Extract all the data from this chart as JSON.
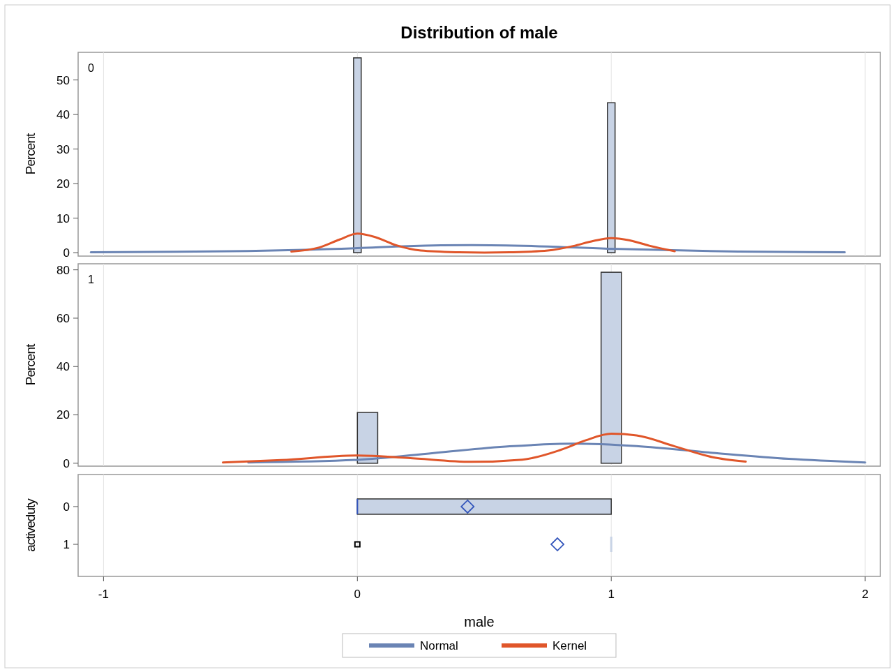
{
  "chart_data": [
    {
      "type": "histogram",
      "title": "Distribution of male",
      "ylabel": "Percent",
      "annotations": [
        "0"
      ],
      "color": "#c8d3e5",
      "bins": [
        -0.015,
        0.015,
        0.045,
        0.076,
        0.106,
        0.136,
        0.167,
        0.197,
        0.227,
        0.258,
        0.288,
        0.318,
        0.348,
        0.379,
        0.409,
        0.439,
        0.47,
        0.5,
        0.53,
        0.561,
        0.591,
        0.621,
        0.652,
        0.682,
        0.712,
        0.742,
        0.773,
        0.803,
        0.833,
        0.864,
        0.894,
        0.924,
        0.955,
        0.985,
        1.015
      ],
      "values": [
        56.4,
        0,
        0,
        0,
        0,
        0,
        0,
        0,
        0,
        0,
        0,
        0,
        0,
        0,
        0,
        0,
        0,
        0,
        0,
        0,
        0,
        0,
        0,
        0,
        0,
        0,
        0,
        0,
        0,
        0,
        0,
        0,
        0,
        43.4
      ],
      "series": [
        {
          "name": "Normal",
          "type": "line",
          "color": "#6a84b4",
          "x": [
            -1.05,
            -0.5,
            0,
            0.2,
            0.45,
            0.7,
            1.0,
            1.5,
            1.92
          ],
          "values": [
            0.1,
            0.4,
            1.3,
            1.9,
            2.2,
            1.9,
            1.1,
            0.3,
            0.1
          ]
        },
        {
          "name": "Kernel",
          "type": "line",
          "color": "#e0562a",
          "x": [
            -0.26,
            -0.15,
            -0.07,
            0,
            0.07,
            0.15,
            0.25,
            0.4,
            0.5,
            0.6,
            0.75,
            0.85,
            0.93,
            1.0,
            1.07,
            1.15,
            1.25
          ],
          "values": [
            0.3,
            1.5,
            3.8,
            5.5,
            4.5,
            2.2,
            0.6,
            0.1,
            0,
            0.1,
            0.6,
            1.9,
            3.4,
            4.2,
            3.6,
            2.0,
            0.4
          ]
        }
      ],
      "xlim": [
        -1.1,
        2.06
      ],
      "xticks": [
        -1,
        0,
        1,
        2
      ],
      "ylim": [
        -1,
        58
      ],
      "yticks": [
        0,
        10,
        20,
        30,
        40,
        50
      ],
      "grid": "x",
      "tick_labels": "y",
      "legend": "bottom"
    },
    {
      "type": "histogram",
      "ylabel": "Percent",
      "annotations": [
        "1"
      ],
      "color": "#c8d3e5",
      "bins": [
        0,
        0.08,
        0.16,
        0.24,
        0.32,
        0.4,
        0.48,
        0.56,
        0.64,
        0.72,
        0.8,
        0.88,
        0.96,
        1.04
      ],
      "values": [
        21,
        0,
        0,
        0,
        0,
        0,
        0,
        0,
        0,
        0,
        0,
        0,
        79
      ],
      "series": [
        {
          "type": "line",
          "color": "#6a84b4",
          "x": [
            -0.43,
            0,
            0.3,
            0.6,
            0.85,
            1.1,
            1.4,
            1.7,
            2.0
          ],
          "values": [
            0.3,
            1.4,
            4.2,
            7.0,
            8.1,
            7.1,
            4.3,
            1.8,
            0.3
          ]
        },
        {
          "type": "line",
          "color": "#e0562a",
          "x": [
            -0.53,
            -0.3,
            0,
            0.2,
            0.45,
            0.65,
            0.8,
            0.9,
            1.0,
            1.1,
            1.25,
            1.4,
            1.53
          ],
          "values": [
            0.3,
            1.3,
            3.2,
            2.2,
            0.6,
            1.5,
            5.5,
            9.5,
            12.2,
            11.5,
            7.0,
            2.5,
            0.7
          ]
        }
      ],
      "xlim": [
        -1.1,
        2.06
      ],
      "xticks": [
        -1,
        0,
        1,
        2
      ],
      "ylim": [
        -1.2,
        82.5
      ],
      "yticks": [
        0,
        20,
        40,
        60,
        80
      ],
      "grid": "x",
      "tick_labels": "y"
    },
    {
      "type": "box",
      "orientation": "horizontal",
      "xlabel": "male",
      "ylabel": "activeduty",
      "color": "#c8d3e5",
      "categories": [
        "0",
        "1"
      ],
      "boxes": [
        {
          "low": 0,
          "q1": 0,
          "median": 0,
          "q3": 1,
          "high": 1,
          "mean": 0.434
        },
        {
          "low": 1,
          "q1": 1,
          "median": 1,
          "q3": 1,
          "high": 1,
          "mean": 0.788,
          "outliers": [
            0
          ]
        }
      ],
      "xlim": [
        -1.1,
        2.06
      ],
      "xticks": [
        -1,
        0,
        1,
        2
      ],
      "grid": "x"
    }
  ]
}
